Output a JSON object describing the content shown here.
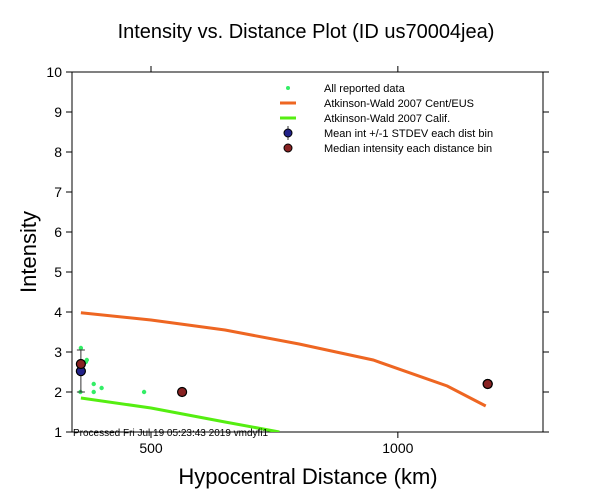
{
  "chart_data": {
    "type": "scatter",
    "title": "Intensity vs. Distance Plot (ID us70004jea)",
    "xlabel": "Hypocentral Distance (km)",
    "ylabel": "Intensity",
    "xlim": [
      340,
      1294
    ],
    "ylim": [
      1,
      10
    ],
    "xticks": [
      500,
      1000
    ],
    "yticks": [
      1,
      2,
      3,
      4,
      5,
      6,
      7,
      8,
      9,
      10
    ],
    "grid": false,
    "legend_position": "top-right",
    "footer": "Processed Fri Jul 19 05:23:43 2019 vmdyfi1",
    "colors": {
      "reported": "#33ee66",
      "cent_eus": "#ee6622",
      "calif": "#55ee11",
      "mean": "#222288",
      "median": "#882222"
    },
    "legend": [
      {
        "label": "All reported data",
        "kind": "dot"
      },
      {
        "label": "Atkinson-Wald 2007 Cent/EUS",
        "kind": "orange-line"
      },
      {
        "label": "Atkinson-Wald 2007 Calif.",
        "kind": "green-line"
      },
      {
        "label": "Mean int +/-1 STDEV each dist bin",
        "kind": "mean"
      },
      {
        "label": "Median intensity each distance bin",
        "kind": "median"
      }
    ],
    "reported": [
      [
        358,
        3.1
      ],
      [
        370,
        2.8
      ],
      [
        368,
        2.75
      ],
      [
        357,
        2.0
      ],
      [
        384,
        2.2
      ],
      [
        384,
        2.0
      ],
      [
        400,
        2.1
      ],
      [
        486,
        2.0
      ],
      [
        1186,
        2.2
      ]
    ],
    "cent_eus": [
      [
        358,
        3.98
      ],
      [
        500,
        3.8
      ],
      [
        650,
        3.55
      ],
      [
        800,
        3.2
      ],
      [
        950,
        2.8
      ],
      [
        1100,
        2.15
      ],
      [
        1178,
        1.65
      ]
    ],
    "calif": [
      [
        358,
        1.85
      ],
      [
        500,
        1.6
      ],
      [
        650,
        1.25
      ],
      [
        760,
        1.0
      ]
    ],
    "mean": [
      {
        "x": 358,
        "y": 2.52,
        "lo": 2.0,
        "hi": 3.05
      },
      {
        "x": 1182,
        "y": 2.2,
        "lo": 2.2,
        "hi": 2.2
      }
    ],
    "median": [
      [
        358,
        2.7
      ],
      [
        563,
        2.0
      ],
      [
        1182,
        2.2
      ]
    ]
  }
}
